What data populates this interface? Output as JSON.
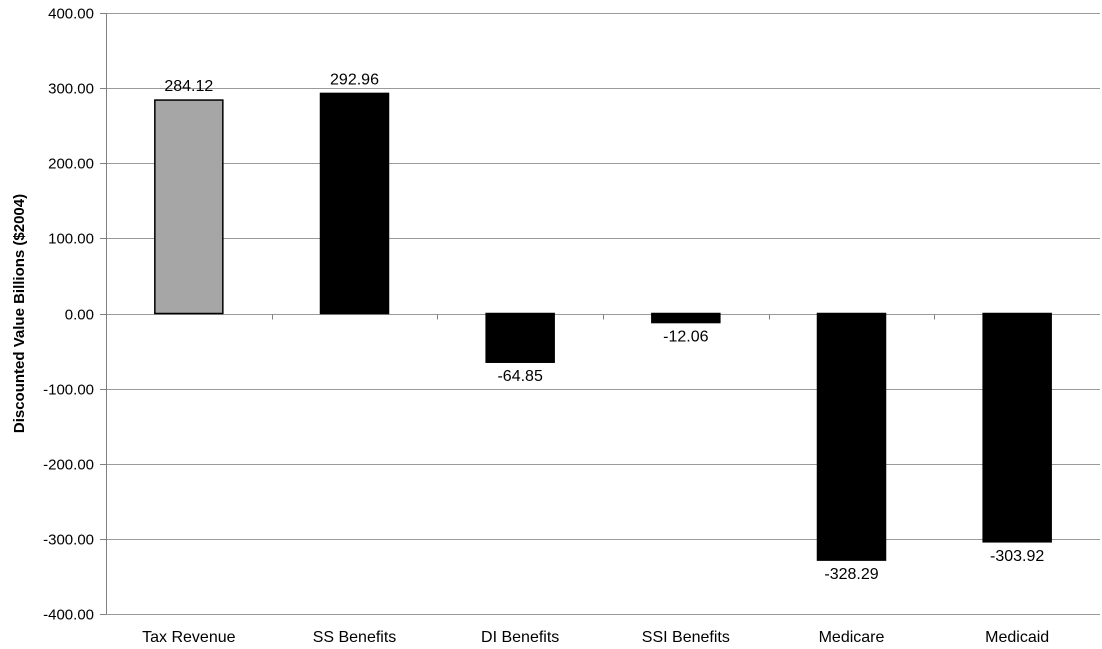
{
  "chart_data": {
    "type": "bar",
    "title": "",
    "xlabel": "",
    "ylabel": "Discounted Value Billions ($2004)",
    "ylim": [
      -400,
      400
    ],
    "yticks": [
      "400.00",
      "300.00",
      "200.00",
      "100.00",
      "0.00",
      "-100.00",
      "-200.00",
      "-300.00",
      "-400.00"
    ],
    "grid": "horizontal",
    "legend": "none",
    "categories": [
      "Tax Revenue",
      "SS Benefits",
      "DI Benefits",
      "SSI Benefits",
      "Medicare",
      "Medicaid"
    ],
    "values": [
      284.12,
      292.96,
      -64.85,
      -12.06,
      -328.29,
      -303.92
    ],
    "data_labels": [
      "284.12",
      "292.96",
      "-64.85",
      "-12.06",
      "-328.29",
      "-303.92"
    ],
    "bar_colors": [
      "#a6a6a6",
      "#000000",
      "#000000",
      "#000000",
      "#000000",
      "#000000"
    ]
  },
  "colors": {
    "grid": "#9a9a9a",
    "axis": "#808080",
    "bar_outline": "#000000"
  }
}
